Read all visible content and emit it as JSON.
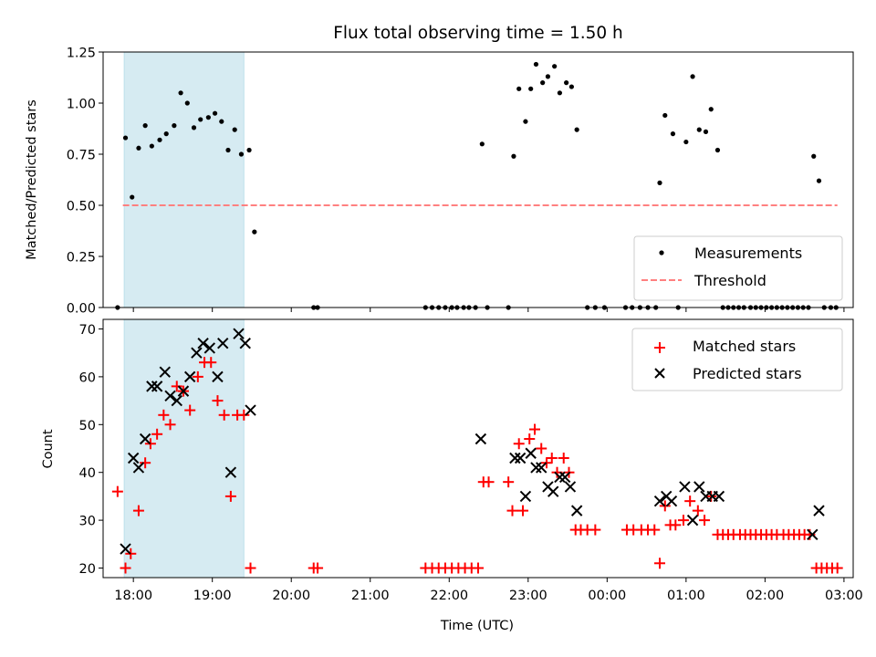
{
  "chart_data": [
    {
      "type": "scatter",
      "title": "Flux total observing time = 1.50 h",
      "xlabel": "",
      "ylabel": "Matched/Predicted stars",
      "ylim": [
        0,
        1.25
      ],
      "yticks": [
        "0.00",
        "0.25",
        "0.50",
        "0.75",
        "1.00",
        "1.25"
      ],
      "x_range": [
        "17:37",
        "03:07"
      ],
      "shaded_interval": [
        "17:53",
        "19:24"
      ],
      "shade_color": "#add8e6",
      "legend_position": "lower right",
      "series": [
        {
          "name": "Measurements",
          "marker": "dot",
          "color": "#000000",
          "points": [
            [
              "17:48",
              0.0
            ],
            [
              "17:54",
              0.83
            ],
            [
              "17:59",
              0.54
            ],
            [
              "18:04",
              0.78
            ],
            [
              "18:09",
              0.89
            ],
            [
              "18:14",
              0.79
            ],
            [
              "18:20",
              0.82
            ],
            [
              "18:25",
              0.85
            ],
            [
              "18:31",
              0.89
            ],
            [
              "18:36",
              1.05
            ],
            [
              "18:41",
              1.0
            ],
            [
              "18:46",
              0.88
            ],
            [
              "18:51",
              0.92
            ],
            [
              "18:57",
              0.93
            ],
            [
              "19:02",
              0.95
            ],
            [
              "19:07",
              0.91
            ],
            [
              "19:12",
              0.77
            ],
            [
              "19:17",
              0.87
            ],
            [
              "19:22",
              0.75
            ],
            [
              "19:28",
              0.77
            ],
            [
              "19:32",
              0.37
            ],
            [
              "20:17",
              0.0
            ],
            [
              "20:20",
              0.0
            ],
            [
              "21:42",
              0.0
            ],
            [
              "21:47",
              0.0
            ],
            [
              "21:52",
              0.0
            ],
            [
              "21:57",
              0.0
            ],
            [
              "22:02",
              0.0
            ],
            [
              "22:06",
              0.0
            ],
            [
              "22:11",
              0.0
            ],
            [
              "22:15",
              0.0
            ],
            [
              "22:20",
              0.0
            ],
            [
              "22:25",
              0.8
            ],
            [
              "22:29",
              0.0
            ],
            [
              "22:45",
              0.0
            ],
            [
              "22:49",
              0.74
            ],
            [
              "22:53",
              1.07
            ],
            [
              "22:58",
              0.91
            ],
            [
              "23:02",
              1.07
            ],
            [
              "23:06",
              1.19
            ],
            [
              "23:11",
              1.1
            ],
            [
              "23:15",
              1.13
            ],
            [
              "23:20",
              1.18
            ],
            [
              "23:24",
              1.05
            ],
            [
              "23:29",
              1.1
            ],
            [
              "23:33",
              1.08
            ],
            [
              "23:37",
              0.87
            ],
            [
              "23:45",
              0.0
            ],
            [
              "23:51",
              0.0
            ],
            [
              "23:58",
              0.0
            ],
            [
              "00:14",
              0.0
            ],
            [
              "00:19",
              0.0
            ],
            [
              "00:25",
              0.0
            ],
            [
              "00:31",
              0.0
            ],
            [
              "00:37",
              0.0
            ],
            [
              "00:40",
              0.61
            ],
            [
              "00:44",
              0.94
            ],
            [
              "00:50",
              0.85
            ],
            [
              "00:54",
              0.0
            ],
            [
              "01:00",
              0.81
            ],
            [
              "01:05",
              1.13
            ],
            [
              "01:10",
              0.87
            ],
            [
              "01:15",
              0.86
            ],
            [
              "01:19",
              0.97
            ],
            [
              "01:24",
              0.77
            ],
            [
              "01:28",
              0.0
            ],
            [
              "01:32",
              0.0
            ],
            [
              "01:36",
              0.0
            ],
            [
              "01:40",
              0.0
            ],
            [
              "01:44",
              0.0
            ],
            [
              "01:49",
              0.0
            ],
            [
              "01:53",
              0.0
            ],
            [
              "01:57",
              0.0
            ],
            [
              "02:01",
              0.0
            ],
            [
              "02:05",
              0.0
            ],
            [
              "02:09",
              0.0
            ],
            [
              "02:13",
              0.0
            ],
            [
              "02:17",
              0.0
            ],
            [
              "02:21",
              0.0
            ],
            [
              "02:25",
              0.0
            ],
            [
              "02:29",
              0.0
            ],
            [
              "02:33",
              0.0
            ],
            [
              "02:37",
              0.74
            ],
            [
              "02:41",
              0.62
            ],
            [
              "02:45",
              0.0
            ],
            [
              "02:50",
              0.0
            ],
            [
              "02:54",
              0.0
            ]
          ]
        },
        {
          "name": "Threshold",
          "marker": "dashed-line",
          "color": "#ff8080",
          "points": [
            [
              "17:52",
              0.5
            ],
            [
              "02:55",
              0.5
            ]
          ]
        }
      ]
    },
    {
      "type": "scatter",
      "title": "",
      "xlabel": "Time (UTC)",
      "ylabel": "Count",
      "ylim": [
        18,
        72
      ],
      "yticks": [
        "20",
        "30",
        "40",
        "50",
        "60",
        "70"
      ],
      "x_range": [
        "17:37",
        "03:07"
      ],
      "xticks": [
        "18:00",
        "19:00",
        "20:00",
        "21:00",
        "22:00",
        "23:00",
        "00:00",
        "01:00",
        "02:00",
        "03:00"
      ],
      "shaded_interval": [
        "17:53",
        "19:24"
      ],
      "shade_color": "#add8e6",
      "legend_position": "upper right",
      "series": [
        {
          "name": "Matched stars",
          "marker": "plus",
          "color": "#ff0000",
          "points": [
            [
              "17:48",
              36
            ],
            [
              "17:54",
              20
            ],
            [
              "17:58",
              23
            ],
            [
              "18:04",
              32
            ],
            [
              "18:09",
              42
            ],
            [
              "18:13",
              46
            ],
            [
              "18:18",
              48
            ],
            [
              "18:23",
              52
            ],
            [
              "18:28",
              50
            ],
            [
              "18:33",
              58
            ],
            [
              "18:38",
              57
            ],
            [
              "18:43",
              53
            ],
            [
              "18:49",
              60
            ],
            [
              "18:54",
              63
            ],
            [
              "18:59",
              63
            ],
            [
              "19:04",
              55
            ],
            [
              "19:09",
              52
            ],
            [
              "19:14",
              35
            ],
            [
              "19:19",
              52
            ],
            [
              "19:24",
              52
            ],
            [
              "19:29",
              20
            ],
            [
              "20:17",
              20
            ],
            [
              "20:20",
              20
            ],
            [
              "21:42",
              20
            ],
            [
              "21:47",
              20
            ],
            [
              "21:52",
              20
            ],
            [
              "21:57",
              20
            ],
            [
              "22:02",
              20
            ],
            [
              "22:07",
              20
            ],
            [
              "22:12",
              20
            ],
            [
              "22:17",
              20
            ],
            [
              "22:22",
              20
            ],
            [
              "22:26",
              38
            ],
            [
              "22:30",
              38
            ],
            [
              "22:45",
              38
            ],
            [
              "22:48",
              32
            ],
            [
              "22:53",
              46
            ],
            [
              "22:56",
              32
            ],
            [
              "23:01",
              47
            ],
            [
              "23:05",
              49
            ],
            [
              "23:10",
              45
            ],
            [
              "23:14",
              42
            ],
            [
              "23:18",
              43
            ],
            [
              "23:22",
              40
            ],
            [
              "23:27",
              43
            ],
            [
              "23:31",
              40
            ],
            [
              "23:36",
              28
            ],
            [
              "23:40",
              28
            ],
            [
              "23:45",
              28
            ],
            [
              "23:51",
              28
            ],
            [
              "24:15",
              28
            ],
            [
              "24:20",
              28
            ],
            [
              "24:26",
              28
            ],
            [
              "24:31",
              28
            ],
            [
              "24:36",
              28
            ],
            [
              "24:40",
              21
            ],
            [
              "24:44",
              33
            ],
            [
              "24:48",
              29
            ],
            [
              "24:52",
              29
            ],
            [
              "24:58",
              30
            ],
            [
              "25:03",
              34
            ],
            [
              "25:09",
              32
            ],
            [
              "25:14",
              30
            ],
            [
              "25:19",
              35
            ],
            [
              "25:24",
              27
            ],
            [
              "25:28",
              27
            ],
            [
              "25:32",
              27
            ],
            [
              "25:36",
              27
            ],
            [
              "25:41",
              27
            ],
            [
              "25:45",
              27
            ],
            [
              "25:49",
              27
            ],
            [
              "25:53",
              27
            ],
            [
              "25:57",
              27
            ],
            [
              "26:01",
              27
            ],
            [
              "26:05",
              27
            ],
            [
              "26:09",
              27
            ],
            [
              "26:14",
              27
            ],
            [
              "26:18",
              27
            ],
            [
              "26:22",
              27
            ],
            [
              "26:26",
              27
            ],
            [
              "26:30",
              27
            ],
            [
              "26:34",
              27
            ],
            [
              "26:39",
              20
            ],
            [
              "26:43",
              20
            ],
            [
              "26:47",
              20
            ],
            [
              "26:51",
              20
            ],
            [
              "26:55",
              20
            ]
          ]
        },
        {
          "name": "Predicted stars",
          "marker": "x",
          "color": "#000000",
          "points": [
            [
              "17:54",
              24
            ],
            [
              "18:00",
              43
            ],
            [
              "18:04",
              41
            ],
            [
              "18:09",
              47
            ],
            [
              "18:14",
              58
            ],
            [
              "18:18",
              58
            ],
            [
              "18:24",
              61
            ],
            [
              "18:28",
              56
            ],
            [
              "18:33",
              55
            ],
            [
              "18:38",
              57
            ],
            [
              "18:43",
              60
            ],
            [
              "18:48",
              65
            ],
            [
              "18:53",
              67
            ],
            [
              "18:58",
              66
            ],
            [
              "19:04",
              60
            ],
            [
              "19:08",
              67
            ],
            [
              "19:14",
              40
            ],
            [
              "19:20",
              69
            ],
            [
              "19:25",
              67
            ],
            [
              "19:29",
              53
            ],
            [
              "22:24",
              47
            ],
            [
              "22:50",
              43
            ],
            [
              "22:54",
              43
            ],
            [
              "22:58",
              35
            ],
            [
              "23:02",
              44
            ],
            [
              "23:06",
              41
            ],
            [
              "23:10",
              41
            ],
            [
              "23:15",
              37
            ],
            [
              "23:19",
              36
            ],
            [
              "23:24",
              39
            ],
            [
              "23:28",
              39
            ],
            [
              "23:32",
              37
            ],
            [
              "23:37",
              32
            ],
            [
              "24:40",
              34
            ],
            [
              "24:45",
              35
            ],
            [
              "24:49",
              34
            ],
            [
              "24:59",
              37
            ],
            [
              "25:05",
              30
            ],
            [
              "25:10",
              37
            ],
            [
              "25:15",
              35
            ],
            [
              "25:20",
              35
            ],
            [
              "25:25",
              35
            ],
            [
              "26:36",
              27
            ],
            [
              "26:41",
              32
            ]
          ]
        }
      ]
    }
  ]
}
